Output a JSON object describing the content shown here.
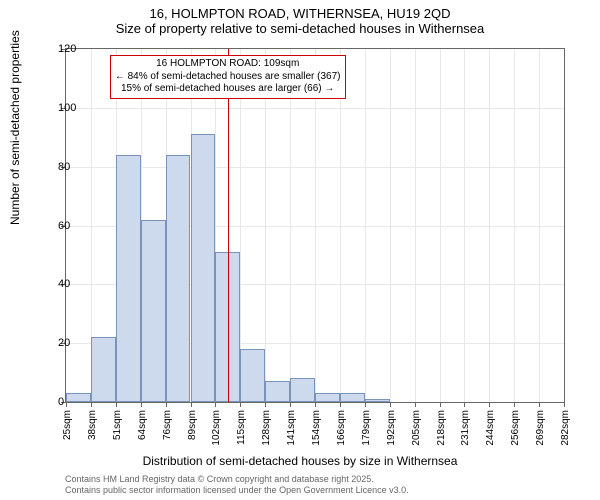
{
  "title": {
    "main": "16, HOLMPTON ROAD, WITHERNSEA, HU19 2QD",
    "sub": "Size of property relative to semi-detached houses in Withernsea"
  },
  "ylabel": "Number of semi-detached properties",
  "xlabel": "Distribution of semi-detached houses by size in Withernsea",
  "attribution": {
    "line1": "Contains HM Land Registry data © Crown copyright and database right 2025.",
    "line2": "Contains public sector information licensed under the Open Government Licence v3.0."
  },
  "chart": {
    "type": "histogram",
    "ylim": [
      0,
      120
    ],
    "ytick_step": 20,
    "yticks": [
      0,
      20,
      40,
      60,
      80,
      100,
      120
    ],
    "xticks": [
      25,
      38,
      51,
      64,
      76,
      89,
      102,
      115,
      128,
      141,
      154,
      166,
      179,
      192,
      205,
      218,
      231,
      244,
      256,
      269,
      282
    ],
    "xtick_suffix": "sqm",
    "bar_fill": "#cdd9ec",
    "bar_stroke": "#7a93b8",
    "grid_color": "#e8e8e8",
    "background_color": "#ffffff",
    "border_color": "#666666",
    "bars": [
      {
        "x_index": 0,
        "value": 3
      },
      {
        "x_index": 1,
        "value": 22
      },
      {
        "x_index": 2,
        "value": 84
      },
      {
        "x_index": 3,
        "value": 62
      },
      {
        "x_index": 4,
        "value": 84
      },
      {
        "x_index": 5,
        "value": 91
      },
      {
        "x_index": 6,
        "value": 51
      },
      {
        "x_index": 7,
        "value": 18
      },
      {
        "x_index": 8,
        "value": 7
      },
      {
        "x_index": 9,
        "value": 8
      },
      {
        "x_index": 10,
        "value": 3
      },
      {
        "x_index": 11,
        "value": 3
      },
      {
        "x_index": 12,
        "value": 1
      }
    ],
    "reference_line": {
      "x_position": 6.5,
      "color": "#cc0000",
      "width": 1.5
    },
    "annotation": {
      "line1": "16 HOLMPTON ROAD: 109sqm",
      "line2": "← 84% of semi-detached houses are smaller (367)",
      "line3": "15% of semi-detached houses are larger (66) →",
      "border_color": "#cc0000",
      "background": "#ffffff",
      "fontsize": 10
    }
  }
}
